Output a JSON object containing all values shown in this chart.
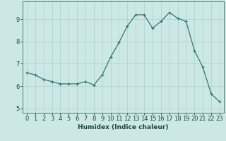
{
  "x": [
    0,
    1,
    2,
    3,
    4,
    5,
    6,
    7,
    8,
    9,
    10,
    11,
    12,
    13,
    14,
    15,
    16,
    17,
    18,
    19,
    20,
    21,
    22,
    23
  ],
  "y": [
    6.6,
    6.5,
    6.3,
    6.2,
    6.1,
    6.1,
    6.1,
    6.2,
    6.05,
    6.5,
    7.3,
    7.95,
    8.7,
    9.2,
    9.2,
    8.6,
    8.9,
    9.3,
    9.05,
    8.9,
    7.6,
    6.85,
    5.65,
    5.3
  ],
  "xlabel": "Humidex (Indice chaleur)",
  "xlim": [
    -0.5,
    23.5
  ],
  "ylim": [
    4.8,
    9.8
  ],
  "yticks": [
    5,
    6,
    7,
    8,
    9
  ],
  "xticks": [
    0,
    1,
    2,
    3,
    4,
    5,
    6,
    7,
    8,
    9,
    10,
    11,
    12,
    13,
    14,
    15,
    16,
    17,
    18,
    19,
    20,
    21,
    22,
    23
  ],
  "line_color": "#2d7a6e",
  "marker_color": "#2d7a6e",
  "bg_color": "#cce8e4",
  "grid_color": "#b0d4d0",
  "axis_color": "#4a7a70",
  "label_color": "#1a4a44",
  "tick_color": "#1a4a44",
  "label_fontsize": 6.5,
  "tick_fontsize": 6
}
